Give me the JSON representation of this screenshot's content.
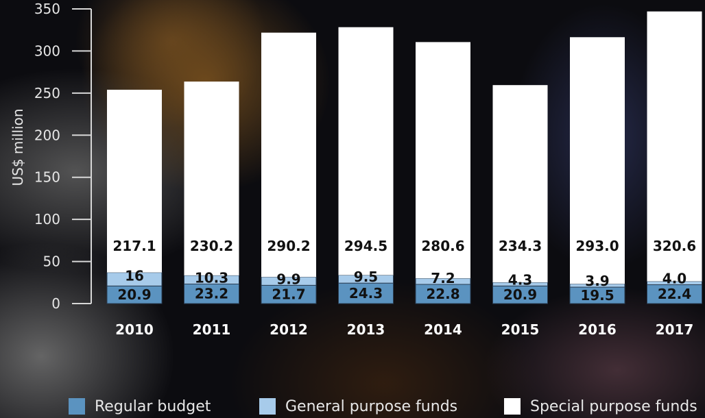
{
  "chart_data": {
    "type": "bar",
    "stacked": true,
    "categories": [
      "2010",
      "2011",
      "2012",
      "2013",
      "2014",
      "2015",
      "2016",
      "2017"
    ],
    "series": [
      {
        "name": "Regular budget",
        "color": "#5b93c0",
        "values": [
          20.9,
          23.2,
          21.7,
          24.3,
          22.8,
          20.9,
          19.5,
          22.4
        ],
        "labels": [
          "20.9",
          "23.2",
          "21.7",
          "24.3",
          "22.8",
          "20.9",
          "19.5",
          "22.4"
        ]
      },
      {
        "name": "General purpose funds",
        "color": "#a7cbea",
        "values": [
          16,
          10.3,
          9.9,
          9.5,
          7.2,
          4.3,
          3.9,
          4.0
        ],
        "labels": [
          "16",
          "10.3",
          "9.9",
          "9.5",
          "7.2",
          "4.3",
          "3.9",
          "4.0"
        ]
      },
      {
        "name": "Special purpose funds",
        "color": "#ffffff",
        "values": [
          217.1,
          230.2,
          290.2,
          294.5,
          280.6,
          234.3,
          293.0,
          320.6
        ],
        "labels": [
          "217.1",
          "230.2",
          "290.2",
          "294.5",
          "280.6",
          "234.3",
          "293.0",
          "320.6"
        ]
      }
    ],
    "ylabel": "US$ million",
    "ylim": [
      0,
      350
    ],
    "yticks": [
      "0",
      "50",
      "100",
      "150",
      "200",
      "250",
      "300",
      "350"
    ],
    "grid": false,
    "legend": "bottom"
  }
}
